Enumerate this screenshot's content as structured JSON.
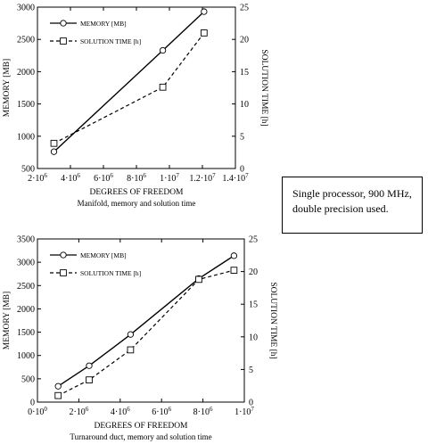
{
  "note": {
    "line1": "Single processor, 900 MHz,",
    "line2": "double precision used."
  },
  "chart_data": [
    {
      "type": "line",
      "caption": "Manifold, memory and solution time",
      "xlabel": "DEGREES OF FREEDOM",
      "ylabel": "MEMORY [MB]",
      "y2label": "SOLUTION TIME [h]",
      "xlim": [
        2000000,
        14000000
      ],
      "ylim": [
        500,
        3000
      ],
      "y2lim": [
        0,
        25
      ],
      "x_ticks": [
        2000000,
        4000000,
        6000000,
        8000000,
        10000000,
        12000000,
        14000000
      ],
      "x_tick_mantissas": [
        "2",
        "4",
        "6",
        "8",
        "1",
        "1.2",
        "1.4"
      ],
      "x_tick_exponents": [
        "6",
        "6",
        "6",
        "6",
        "7",
        "7",
        "7"
      ],
      "y_ticks": [
        500,
        1000,
        1500,
        2000,
        2500,
        3000
      ],
      "y_tick_labels": [
        "500",
        "1000",
        "1500",
        "2000",
        "2500",
        "3000"
      ],
      "y2_ticks": [
        0,
        5,
        10,
        15,
        20,
        25
      ],
      "y2_tick_labels": [
        "0",
        "5",
        "10",
        "15",
        "20",
        "25"
      ],
      "legend_position": "top-left",
      "series": [
        {
          "name": "MEMORY  [MB]",
          "axis": "left",
          "marker": "circle",
          "dash": "solid",
          "x": [
            3000000,
            9600000,
            12100000
          ],
          "values": [
            760,
            2330,
            2930
          ]
        },
        {
          "name": "SOLUTION TIME  [h]",
          "axis": "right",
          "marker": "square",
          "dash": "dashed",
          "x": [
            3000000,
            9600000,
            12100000
          ],
          "values": [
            3.9,
            12.6,
            21.0
          ]
        }
      ]
    },
    {
      "type": "line",
      "caption": "Turnaround duct, memory and solution time",
      "xlabel": "DEGREES OF FREEDOM",
      "ylabel": "MEMORY [MB]",
      "y2label": "SOLUTION TIME [h]",
      "xlim": [
        0,
        10000000
      ],
      "ylim": [
        0,
        3500
      ],
      "y2lim": [
        0,
        25
      ],
      "x_ticks": [
        0,
        2000000,
        4000000,
        6000000,
        8000000,
        10000000
      ],
      "x_tick_mantissas": [
        "0",
        "2",
        "4",
        "6",
        "8",
        "1"
      ],
      "x_tick_exponents": [
        "0",
        "6",
        "6",
        "6",
        "6",
        "7"
      ],
      "y_ticks": [
        0,
        500,
        1000,
        1500,
        2000,
        2500,
        3000,
        3500
      ],
      "y_tick_labels": [
        "0",
        "500",
        "1000",
        "1500",
        "2000",
        "2500",
        "3000",
        "3500"
      ],
      "y2_ticks": [
        0,
        5,
        10,
        15,
        20,
        25
      ],
      "y2_tick_labels": [
        "0",
        "5",
        "10",
        "15",
        "20",
        "25"
      ],
      "legend_position": "top-left",
      "series": [
        {
          "name": "MEMORY  [MB]",
          "axis": "left",
          "marker": "circle",
          "dash": "solid",
          "x": [
            1000000,
            2500000,
            4500000,
            7800000,
            9500000
          ],
          "values": [
            340,
            780,
            1450,
            2650,
            3140
          ]
        },
        {
          "name": "SOLUTION TIME  [h]",
          "axis": "right",
          "marker": "square",
          "dash": "dashed",
          "x": [
            1000000,
            2500000,
            4500000,
            7800000,
            9500000
          ],
          "values": [
            1.0,
            3.4,
            8.0,
            18.8,
            20.2
          ]
        }
      ]
    }
  ]
}
